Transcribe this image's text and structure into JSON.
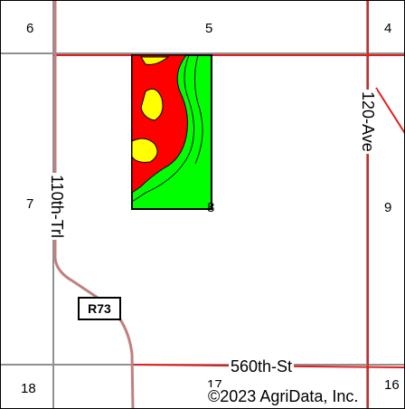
{
  "sections": [
    "6",
    "5",
    "4",
    "7",
    "8",
    "9",
    "18",
    "17",
    "16"
  ],
  "roads": {
    "avenue": "120-Ave",
    "trail": "110th-Trl",
    "street": "560th-St",
    "route_shield": "R73"
  },
  "copyright": "©2023 AgriData, Inc.",
  "colors": {
    "soil_red": "#ff0000",
    "soil_yellow": "#ffff00",
    "soil_green": "#00ff00",
    "road_red": "#e02020",
    "road_rose": "#c08080",
    "road_gray": "#909090"
  }
}
